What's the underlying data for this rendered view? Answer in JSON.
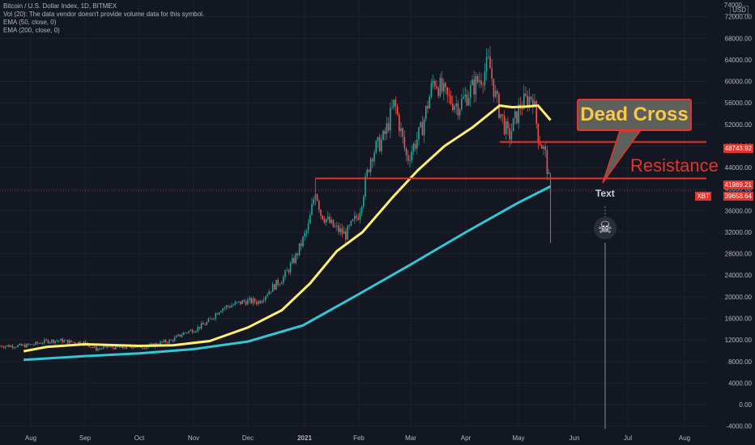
{
  "legend": {
    "title": "Bitcoin / U.S. Dollar Index, 1D, BITMEX",
    "vol": "Vol (20): The data vendor doesn't provide volume data for this symbol.",
    "ema50": "EMA (50, close, 0)",
    "ema200": "EMA (200, close, 0)"
  },
  "annotations": {
    "callout": "Dead Cross",
    "resistance": "Resistance",
    "text_note": "Text",
    "skull_icon": "skull-crossbones-icon"
  },
  "price_tags": {
    "upper": "48743.92",
    "resistance": "41989.21",
    "symbol": "XBT",
    "current": "39658.64"
  },
  "axis": {
    "currency": "USD",
    "top_partial": "74000"
  },
  "colors": {
    "background": "#131722",
    "up": "#26a69a",
    "down": "#ef5350",
    "ema50": "#ffef6e",
    "ema200": "#34c6d6",
    "annotation_red": "#e8322a",
    "callout_text": "#f9c84b"
  },
  "chart_data": {
    "type": "candlestick",
    "x_ticks": [
      "Aug",
      "Sep",
      "Oct",
      "Nov",
      "Dec",
      "2021",
      "Feb",
      "Mar",
      "Apr",
      "May",
      "Jun",
      "Jul",
      "Aug"
    ],
    "y_ticks": [
      "72000.00",
      "68000.00",
      "64000.00",
      "60000.00",
      "56000.00",
      "52000.00",
      "48000.00",
      "44000.00",
      "40000.00",
      "36000.00",
      "32000.00",
      "28000.00",
      "24000.00",
      "20000.00",
      "16000.00",
      "12000.00",
      "8000.00",
      "4000.00",
      "0.00",
      "-4000.00"
    ],
    "ylim": [
      -4500,
      74500
    ],
    "close_series": [
      [
        "Jul 27",
        10900
      ],
      [
        "Aug 3",
        11200
      ],
      [
        "Aug 10",
        11800
      ],
      [
        "Aug 17",
        11900
      ],
      [
        "Aug 24",
        11600
      ],
      [
        "Aug 31",
        11500
      ],
      [
        "Sep 7",
        10300
      ],
      [
        "Sep 14",
        10700
      ],
      [
        "Sep 21",
        10500
      ],
      [
        "Sep 28",
        10800
      ],
      [
        "Oct 5",
        10700
      ],
      [
        "Oct 12",
        11400
      ],
      [
        "Oct 19",
        11900
      ],
      [
        "Oct 26",
        13300
      ],
      [
        "Nov 2",
        14000
      ],
      [
        "Nov 9",
        15300
      ],
      [
        "Nov 16",
        17800
      ],
      [
        "Nov 23",
        18500
      ],
      [
        "Nov 30",
        19200
      ],
      [
        "Dec 7",
        19100
      ],
      [
        "Dec 14",
        21500
      ],
      [
        "Dec 21",
        23600
      ],
      [
        "Dec 28",
        27500
      ],
      [
        "Jan 4",
        33000
      ],
      [
        "Jan 8",
        40000
      ],
      [
        "Jan 11",
        35500
      ],
      [
        "Jan 18",
        33000
      ],
      [
        "Jan 25",
        31500
      ],
      [
        "Feb 1",
        35500
      ],
      [
        "Feb 8",
        46500
      ],
      [
        "Feb 15",
        49500
      ],
      [
        "Feb 21",
        56000
      ],
      [
        "Feb 28",
        45500
      ],
      [
        "Mar 7",
        51000
      ],
      [
        "Mar 14",
        60500
      ],
      [
        "Mar 21",
        57000
      ],
      [
        "Mar 28",
        55500
      ],
      [
        "Apr 4",
        58500
      ],
      [
        "Apr 11",
        61500
      ],
      [
        "Apr 14",
        63500
      ],
      [
        "Apr 18",
        56500
      ],
      [
        "Apr 25",
        49500
      ],
      [
        "May 2",
        55500
      ],
      [
        "May 9",
        57500
      ],
      [
        "May 12",
        50000
      ],
      [
        "May 16",
        46500
      ],
      [
        "May 19",
        39658.64
      ]
    ],
    "ema50": [
      [
        "Jul 27",
        9900
      ],
      [
        "Aug 10",
        10700
      ],
      [
        "Sep 1",
        11200
      ],
      [
        "Oct 1",
        10900
      ],
      [
        "Oct 20",
        11000
      ],
      [
        "Nov 10",
        11800
      ],
      [
        "Dec 1",
        14300
      ],
      [
        "Dec 20",
        17500
      ],
      [
        "Jan 5",
        22500
      ],
      [
        "Jan 20",
        28500
      ],
      [
        "Feb 3",
        32000
      ],
      [
        "Feb 20",
        38500
      ],
      [
        "Mar 5",
        43500
      ],
      [
        "Mar 20",
        48000
      ],
      [
        "Apr 5",
        51500
      ],
      [
        "Apr 20",
        55500
      ],
      [
        "Apr 27",
        55200
      ],
      [
        "May 5",
        55300
      ],
      [
        "May 12",
        55500
      ],
      [
        "May 19",
        52800
      ]
    ],
    "ema200": [
      [
        "Jul 27",
        8300
      ],
      [
        "Sep 1",
        9000
      ],
      [
        "Oct 1",
        9500
      ],
      [
        "Nov 1",
        10300
      ],
      [
        "Dec 1",
        11700
      ],
      [
        "Jan 1",
        14700
      ],
      [
        "Feb 1",
        20500
      ],
      [
        "Mar 1",
        26000
      ],
      [
        "Apr 1",
        32000
      ],
      [
        "May 1",
        37500
      ],
      [
        "May 19",
        40500
      ]
    ],
    "levels": [
      48743.92,
      41989.21
    ],
    "current_price": 39658.64
  }
}
